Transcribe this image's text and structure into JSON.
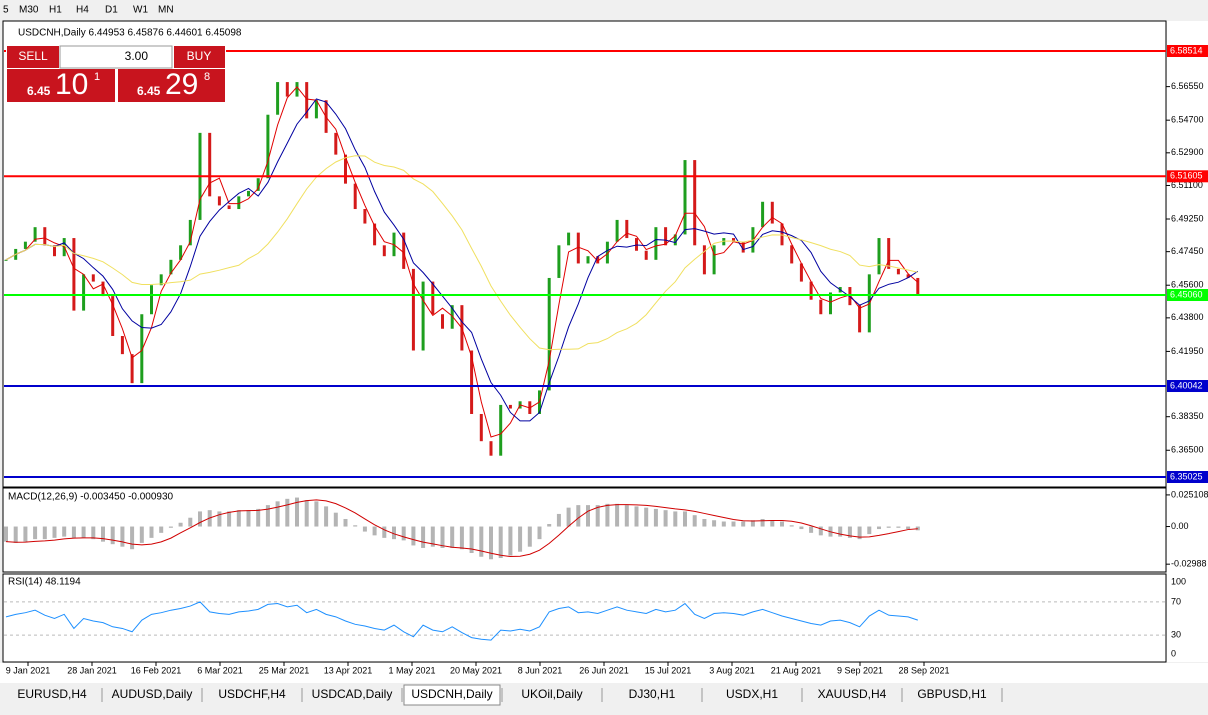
{
  "toolbar": {
    "timeframes": [
      "5",
      "M30",
      "H1",
      "H4",
      "D1",
      "W1",
      "MN"
    ]
  },
  "chart": {
    "type": "candlestick",
    "header": "USDCNH,Daily  6.44953 6.45876 6.44601 6.45098",
    "closes": [
      6.47,
      6.476,
      6.48,
      6.488,
      6.478,
      6.472,
      6.482,
      6.442,
      6.462,
      6.458,
      6.45,
      6.428,
      6.418,
      6.402,
      6.44,
      6.456,
      6.462,
      6.47,
      6.478,
      6.492,
      6.54,
      6.505,
      6.5,
      6.498,
      6.505,
      6.508,
      6.515,
      6.55,
      6.568,
      6.56,
      6.568,
      6.548,
      6.558,
      6.54,
      6.528,
      6.512,
      6.498,
      6.49,
      6.478,
      6.472,
      6.485,
      6.465,
      6.42,
      6.458,
      6.44,
      6.432,
      6.445,
      6.42,
      6.385,
      6.37,
      6.362,
      6.39,
      6.388,
      6.392,
      6.385,
      6.398,
      6.46,
      6.478,
      6.485,
      6.468,
      6.472,
      6.468,
      6.48,
      6.492,
      6.482,
      6.475,
      6.47,
      6.488,
      6.478,
      6.484,
      6.525,
      6.478,
      6.462,
      6.478,
      6.482,
      6.48,
      6.474,
      6.488,
      6.502,
      6.49,
      6.478,
      6.468,
      6.458,
      6.448,
      6.44,
      6.452,
      6.455,
      6.445,
      6.43,
      6.462,
      6.482,
      6.465,
      6.462,
      6.46,
      6.451
    ],
    "ylim": [
      6.34529,
      6.60113
    ],
    "yticks": [
      {
        "value": 6.5655,
        "label": "6.56550"
      },
      {
        "value": 6.547,
        "label": "6.54700"
      },
      {
        "value": 6.529,
        "label": "6.52900"
      },
      {
        "value": 6.511,
        "label": "6.51100"
      },
      {
        "value": 6.4925,
        "label": "6.49250"
      },
      {
        "value": 6.4745,
        "label": "6.47450"
      },
      {
        "value": 6.456,
        "label": "6.45600"
      },
      {
        "value": 6.438,
        "label": "6.43800"
      },
      {
        "value": 6.4195,
        "label": "6.41950"
      },
      {
        "value": 6.3835,
        "label": "6.38350"
      },
      {
        "value": 6.365,
        "label": "6.36500"
      }
    ],
    "levels": [
      {
        "value": 6.58514,
        "color": "#ff0000"
      },
      {
        "value": 6.51605,
        "color": "#ff0000"
      },
      {
        "value": 6.4506,
        "label": "6.45060",
        "color": "#00ff00"
      },
      {
        "value": 6.40042,
        "color": "#0000cc"
      },
      {
        "value": 6.35025,
        "color": "#0000cc"
      }
    ],
    "x_labels": [
      "9 Jan 2021",
      "28 Jan 2021",
      "16 Feb 2021",
      "6 Mar 2021",
      "25 Mar 2021",
      "13 Apr 2021",
      "1 May 2021",
      "20 May 2021",
      "8 Jun 2021",
      "26 Jun 2021",
      "15 Jul 2021",
      "3 Aug 2021",
      "21 Aug 2021",
      "9 Sep 2021",
      "28 Sep 2021"
    ]
  },
  "trade_panel": {
    "sell": "SELL",
    "buy": "BUY",
    "volume": "3.00",
    "sell_big": "6.45",
    "sell_mid": "10",
    "sell_sup": "1",
    "buy_big": "6.45",
    "buy_mid": "29",
    "buy_sup": "8"
  },
  "macd": {
    "title": "MACD(12,26,9) -0.003450 -0.000930",
    "ylim": [
      -0.0353,
      0.0298
    ],
    "yticks": [
      0.025108,
      {
        "value": 0,
        "label": "0.00"
      },
      -0.02988
    ],
    "histogram": [
      -0.012,
      -0.013,
      -0.012,
      -0.01,
      -0.01,
      -0.009,
      -0.008,
      -0.009,
      -0.009,
      -0.01,
      -0.012,
      -0.014,
      -0.016,
      -0.018,
      -0.013,
      -0.009,
      -0.005,
      -0.001,
      0.003,
      0.007,
      0.012,
      0.013,
      0.012,
      0.012,
      0.013,
      0.013,
      0.014,
      0.017,
      0.02,
      0.022,
      0.023,
      0.021,
      0.02,
      0.016,
      0.011,
      0.006,
      0.001,
      -0.004,
      -0.007,
      -0.009,
      -0.01,
      -0.011,
      -0.015,
      -0.017,
      -0.016,
      -0.017,
      -0.017,
      -0.018,
      -0.021,
      -0.024,
      -0.026,
      -0.025,
      -0.023,
      -0.02,
      -0.016,
      -0.01,
      0.002,
      0.01,
      0.015,
      0.017,
      0.017,
      0.017,
      0.018,
      0.018,
      0.017,
      0.016,
      0.015,
      0.014,
      0.013,
      0.012,
      0.012,
      0.009,
      0.006,
      0.005,
      0.004,
      0.004,
      0.004,
      0.005,
      0.006,
      0.005,
      0.004,
      0.001,
      -0.002,
      -0.005,
      -0.007,
      -0.008,
      -0.008,
      -0.009,
      -0.01,
      -0.006,
      -0.002,
      -0.001,
      -0.001,
      -0.002,
      -0.003
    ]
  },
  "rsi": {
    "title": "RSI(14) 48.1194",
    "ylim": [
      0,
      100
    ],
    "yticks": [
      100,
      70,
      30,
      0
    ],
    "values": [
      52,
      55,
      57,
      60,
      54,
      50,
      55,
      38,
      50,
      47,
      45,
      40,
      38,
      34,
      48,
      55,
      57,
      60,
      62,
      65,
      70,
      58,
      56,
      55,
      58,
      59,
      61,
      67,
      68,
      64,
      66,
      57,
      61,
      55,
      52,
      47,
      43,
      41,
      38,
      36,
      42,
      34,
      28,
      42,
      36,
      34,
      40,
      33,
      27,
      25,
      24,
      36,
      35,
      37,
      35,
      40,
      58,
      62,
      64,
      57,
      58,
      56,
      60,
      64,
      60,
      58,
      56,
      61,
      58,
      60,
      68,
      55,
      50,
      56,
      57,
      56,
      54,
      58,
      61,
      57,
      53,
      50,
      47,
      44,
      42,
      47,
      48,
      45,
      40,
      53,
      60,
      54,
      53,
      52,
      48
    ]
  },
  "tabs": [
    "EURUSD,H4",
    "AUDUSD,Daily",
    "USDCHF,H4",
    "USDCAD,Daily",
    "USDCNH,Daily",
    "UKOil,Daily",
    "DJ30,H1",
    "USDX,H1",
    "XAUUSD,H4",
    "GBPUSD,H1"
  ],
  "active_tab": 4
}
